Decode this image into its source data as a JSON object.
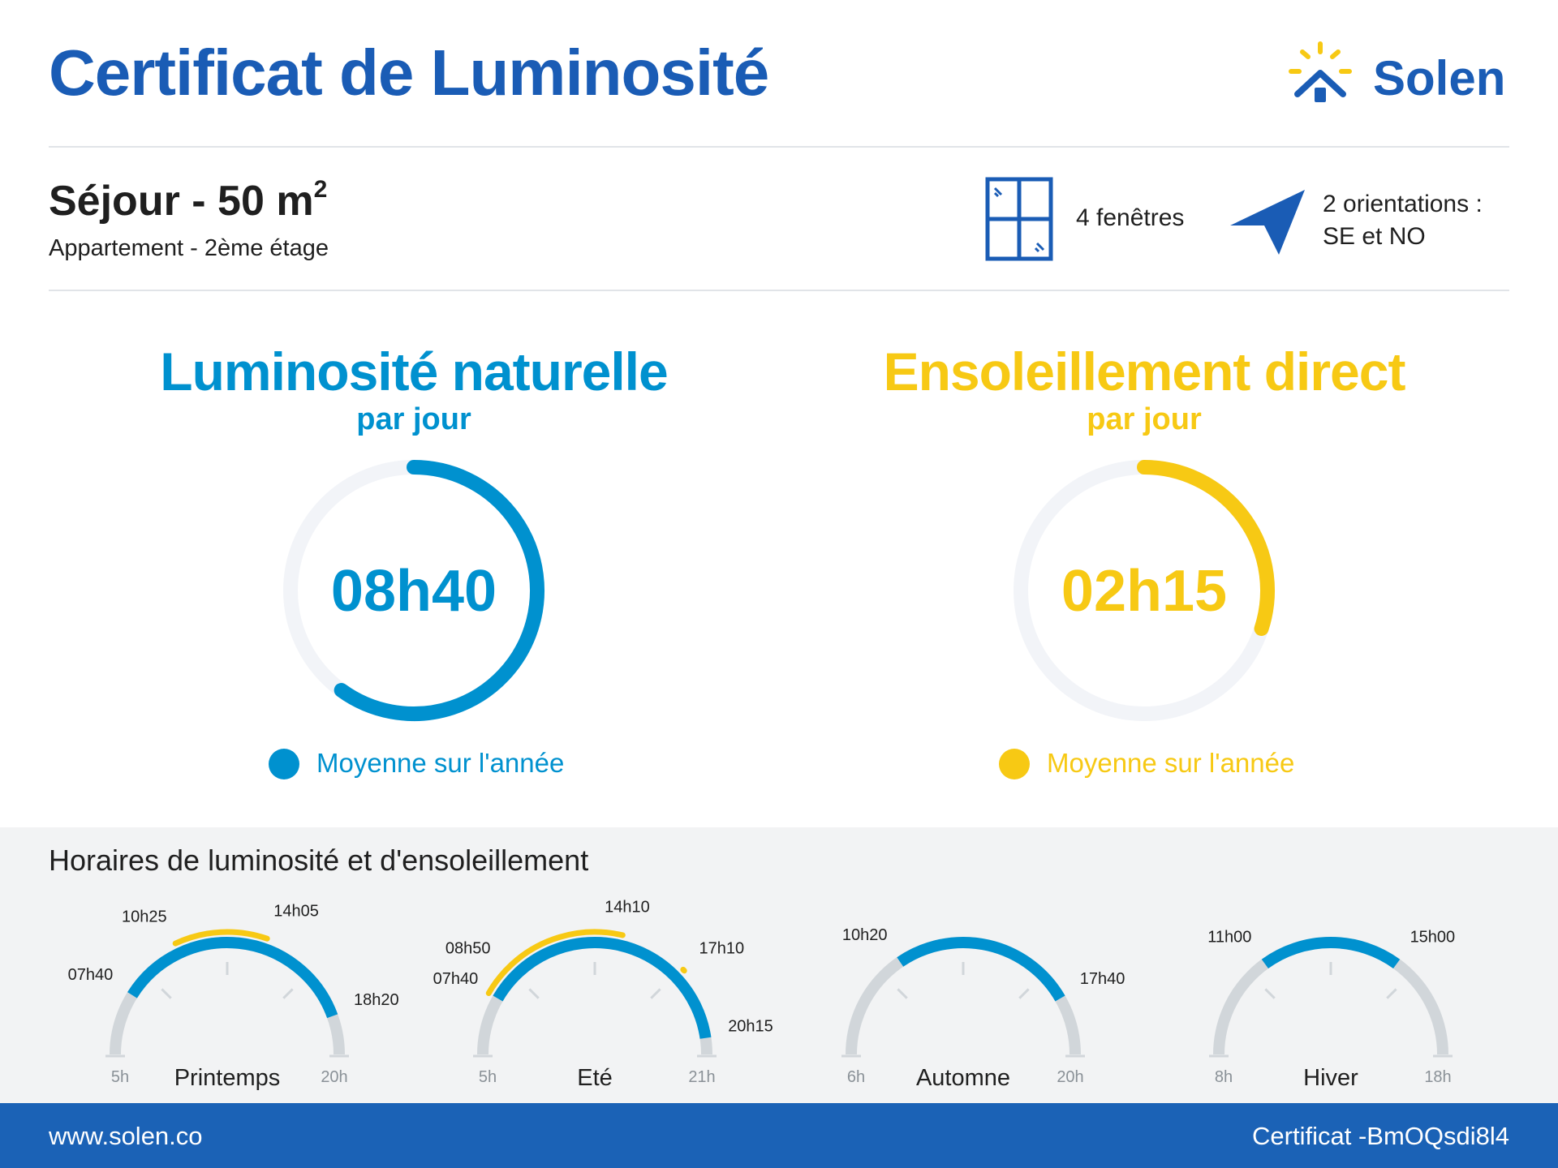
{
  "header": {
    "title": "Certificat de Luminosité",
    "brand": "Solen"
  },
  "room": {
    "title": "Séjour - 50 m",
    "superscript": "2",
    "subtitle": "Appartement - 2ème étage",
    "windows_label": "4 fenêtres",
    "orientation_line1": "2 orientations :",
    "orientation_line2": "SE et NO"
  },
  "metrics": [
    {
      "title": "Luminosité naturelle",
      "sub": "par jour",
      "value": "08h40",
      "fraction": 0.6,
      "legend": "Moyenne sur l'année",
      "color": "#0091cf"
    },
    {
      "title": "Ensoleillement direct",
      "sub": "par jour",
      "value": "02h15",
      "fraction": 0.3,
      "legend": "Moyenne sur l'année",
      "color": "#f7c914"
    }
  ],
  "schedule": {
    "title": "Horaires de luminosité et d'ensoleillement",
    "seasons": [
      {
        "name": "Printemps",
        "start_label": "5h",
        "end_label": "20h",
        "start": 5,
        "end": 20,
        "light": {
          "from": 7.667,
          "to": 18.333,
          "from_label": "07h40",
          "to_label": "18h20"
        },
        "sun": [
          {
            "from": 10.417,
            "to": 14.083,
            "from_label": "10h25",
            "to_label": "14h05"
          }
        ]
      },
      {
        "name": "Eté",
        "start_label": "5h",
        "end_label": "21h",
        "start": 5,
        "end": 21,
        "light": {
          "from": 7.667,
          "to": 20.25,
          "from_label": "07h40",
          "to_label": "20h15"
        },
        "sun": [
          {
            "from": 7.667,
            "to": 8.833,
            "from_label": "",
            "to_label": "08h50"
          },
          {
            "from": 8.833,
            "to": 14.167,
            "from_label": "",
            "to_label": "14h10"
          },
          {
            "from": 17.1,
            "to": 17.167,
            "from_label": "",
            "to_label": "17h10"
          }
        ]
      },
      {
        "name": "Automne",
        "start_label": "6h",
        "end_label": "20h",
        "start": 6,
        "end": 20,
        "light": {
          "from": 10.333,
          "to": 17.667,
          "from_label": "10h20",
          "to_label": "17h40"
        },
        "sun": []
      },
      {
        "name": "Hiver",
        "start_label": "8h",
        "end_label": "18h",
        "start": 8,
        "end": 18,
        "light": {
          "from": 11.0,
          "to": 15.0,
          "from_label": "11h00",
          "to_label": "15h00"
        },
        "sun": []
      }
    ]
  },
  "footer": {
    "url": "www.solen.co",
    "certificate_id": "Certificat -BmOQsdi8l4"
  },
  "colors": {
    "blue": "#0091cf",
    "navy": "#1a5cb5",
    "yellow": "#f7c914",
    "gray": "#d1d6da"
  }
}
